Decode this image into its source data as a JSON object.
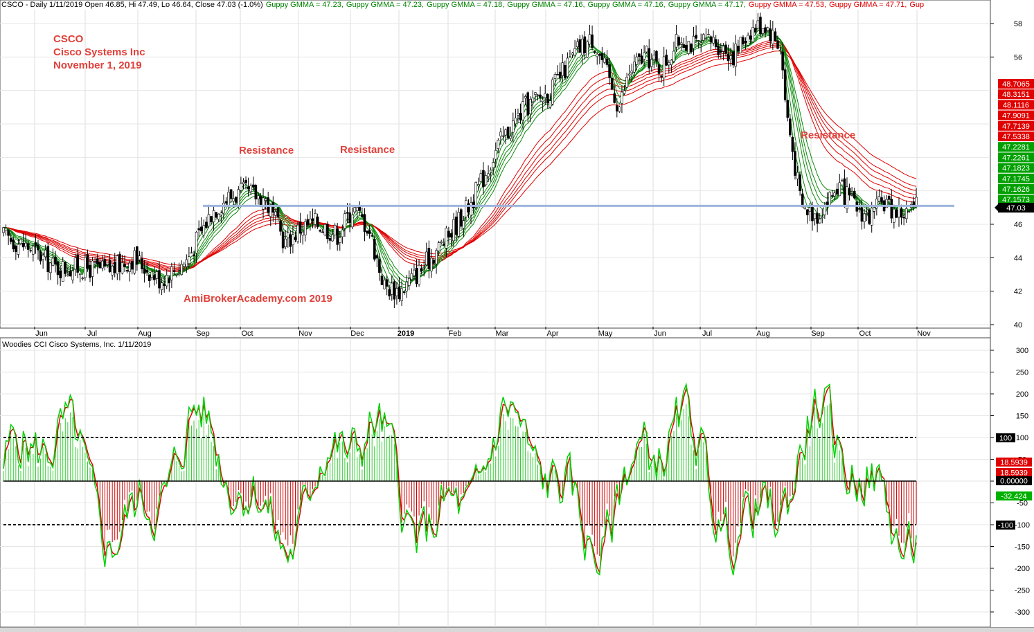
{
  "header": {
    "main": "CSCO - Daily 1/11/2019 Open 46.85, Hi 47.49, Lo 46.64, Close 47.03 (-1.0%)",
    "gmma": [
      {
        "text": "Guppy GMMA = 47.23,",
        "color": "#008000"
      },
      {
        "text": "Guppy GMMA = 47.23,",
        "color": "#008000"
      },
      {
        "text": "Guppy GMMA = 47.18,",
        "color": "#008000"
      },
      {
        "text": "Guppy GMMA = 47.16,",
        "color": "#008000"
      },
      {
        "text": "Guppy GMMA = 47.16,",
        "color": "#008000"
      },
      {
        "text": "Guppy GMMA = 47.17,",
        "color": "#008000"
      },
      {
        "text": "Guppy GMMA = 47.53,",
        "color": "#e00000"
      },
      {
        "text": "Guppy GMMA = 47.71,",
        "color": "#e00000"
      },
      {
        "text": "Gup",
        "color": "#e00000"
      }
    ]
  },
  "annotations": {
    "ticker": "CSCO",
    "company": "Cisco Systems Inc",
    "date": "November 1, 2019",
    "resistance_1": "Resistance",
    "resistance_2": "Resistance",
    "resistance_3": "Resistance",
    "watermark": "AmiBrokerAcademy.com  2019"
  },
  "lower_header": "Woodies CCI  Cisco Systems, Inc. 1/11/2019",
  "colors": {
    "up_ema": "#0a8a0a",
    "down_ema": "#e00000",
    "resistance_line": "#9fb4dc",
    "cci_main": "#00d000",
    "cci_fast": "#e00000",
    "annotation": "#e0403a"
  },
  "chart_data": [
    {
      "type": "candlestick",
      "title": "CSCO - Daily",
      "x_tick_labels": [
        "Jun",
        "Jul",
        "Aug",
        "Sep",
        "Oct",
        "Nov",
        "Dec",
        "2019",
        "Feb",
        "Mar",
        "Apr",
        "May",
        "Jun",
        "Jul",
        "Aug",
        "Sep",
        "Oct",
        "Nov"
      ],
      "y_tick_labels": [
        40,
        42,
        44,
        46,
        56,
        58
      ],
      "ylim": [
        39.8,
        58.6
      ],
      "close_path": {
        "months": [
          0,
          0.5,
          1,
          1.6,
          2,
          2.5,
          3,
          3.5,
          4,
          4.3,
          4.6,
          5,
          5.4,
          5.7,
          6,
          6.4,
          6.7,
          7,
          7.3,
          7.6,
          8,
          8.5,
          9,
          9.5,
          10,
          10.5,
          11,
          11.3,
          11.5,
          11.8,
          12,
          12.3,
          12.6,
          13,
          13.3,
          13.6,
          14,
          14.3,
          14.6,
          14.9,
          15,
          15.3,
          15.6,
          15.8,
          16,
          16.3,
          16.6,
          16.9,
          17,
          17.3,
          17.5
        ],
        "price": [
          45.3,
          44.6,
          43.4,
          43.4,
          43.2,
          44.0,
          42.7,
          43.8,
          46.8,
          47.6,
          47.9,
          47.6,
          44.9,
          45.8,
          46.1,
          45.4,
          47.0,
          45.8,
          42.3,
          42.0,
          43.3,
          45.2,
          47.5,
          50.8,
          53.0,
          54.0,
          56.4,
          57.1,
          55.6,
          53.0,
          55.1,
          56.1,
          55.3,
          57.2,
          56.6,
          57.0,
          56.1,
          57.6,
          58.0,
          56.6,
          53.0,
          47.0,
          46.6,
          47.4,
          48.3,
          47.1,
          46.4,
          47.4,
          46.9,
          46.6,
          47.0
        ],
        "range": [
          1,
          1.5,
          2.5,
          3,
          3.6,
          4.2,
          4.6,
          5.1,
          5.4,
          5.9,
          7.2,
          7.6,
          8.2,
          9.3,
          10.9,
          11.7,
          12.2,
          13.7,
          14.9,
          15.6,
          16.8,
          17
        ],
        "months_idx": [
          0,
          1,
          2,
          3,
          4,
          4.3,
          5.2,
          5.9,
          6.5,
          7.1,
          8.4,
          9.0,
          10.1,
          11.2,
          12.6,
          13.8,
          14.6,
          15.7,
          16.3,
          16.8,
          17.2,
          17.5
        ]
      },
      "gmma_last": [
        47.23,
        47.23,
        47.18,
        47.16,
        47.16,
        47.17,
        47.53,
        47.71
      ],
      "resistance_level": 47.1
    },
    {
      "type": "line",
      "title": "Woodies CCI  Cisco Systems, Inc. 1/11/2019",
      "y_tick_labels": [
        300,
        250,
        200,
        150,
        100,
        50,
        0,
        -50,
        -100,
        -150,
        -200,
        -250,
        -300
      ],
      "ylim": [
        -330,
        330
      ],
      "reference_lines": [
        100,
        0,
        -100
      ],
      "label_box_values": [
        {
          "label": "100",
          "color": "#000000"
        },
        {
          "label": "18.5939",
          "color": "#e00000"
        },
        {
          "label": "18.5939",
          "color": "#e00000"
        },
        {
          "label": "0.00000",
          "color": "#000000"
        },
        {
          "label": "-32.424",
          "color": "#00b000"
        },
        {
          "label": "-100",
          "color": "#000000"
        }
      ]
    }
  ],
  "price_label_boxes": [
    {
      "label": "48.7065",
      "color": "#e00000"
    },
    {
      "label": "48.3151",
      "color": "#e00000"
    },
    {
      "label": "48.1116",
      "color": "#e00000"
    },
    {
      "label": "47.9091",
      "color": "#e00000"
    },
    {
      "label": "47.7139",
      "color": "#e00000"
    },
    {
      "label": "47.5338",
      "color": "#e00000"
    },
    {
      "label": "47.2281",
      "color": "#00a000"
    },
    {
      "label": "47.2261",
      "color": "#00a000"
    },
    {
      "label": "47.1823",
      "color": "#00a000"
    },
    {
      "label": "47.1745",
      "color": "#00a000"
    },
    {
      "label": "47.1626",
      "color": "#00a000"
    },
    {
      "label": "47.1573",
      "color": "#00a000"
    },
    {
      "label": "47.03",
      "color": "#000000"
    }
  ]
}
